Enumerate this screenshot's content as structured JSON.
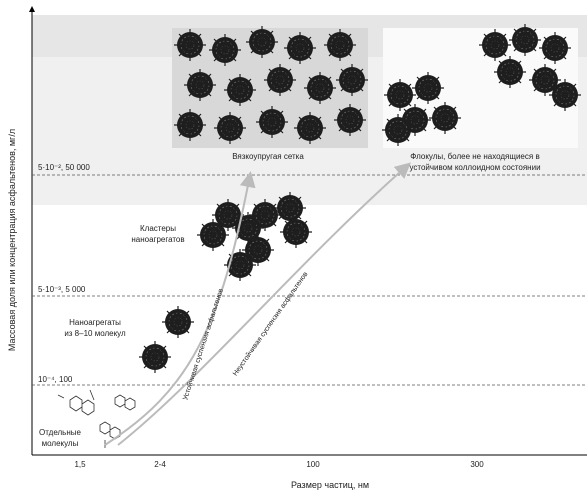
{
  "axes": {
    "y_label": "Массовая доля или концентрация асфальтенов, мг/л",
    "x_label": "Размер частиц, нм",
    "x_ticks": [
      "1,5",
      "2-4",
      "100",
      "300"
    ],
    "levels": [
      "10⁻⁴, 100",
      "5·10⁻³, 5 000",
      "5·10⁻², 50 000"
    ]
  },
  "regions": [
    {
      "lines": [
        "Отдельные",
        "молекулы"
      ]
    },
    {
      "lines": [
        "Наноагрегаты",
        "из 8–10 молекул"
      ]
    },
    {
      "lines": [
        "Кластеры",
        "наноагрегатов"
      ]
    },
    {
      "lines": [
        "Вязкоупругая сетка"
      ]
    },
    {
      "lines": [
        "Флокулы, более не находящиеся в",
        "устойчивом коллоидном состоянии"
      ]
    }
  ],
  "arrows": [
    "Устойчивая суспензия асфальтенов",
    "Неустойчивая суспензия асфальтенов"
  ]
}
